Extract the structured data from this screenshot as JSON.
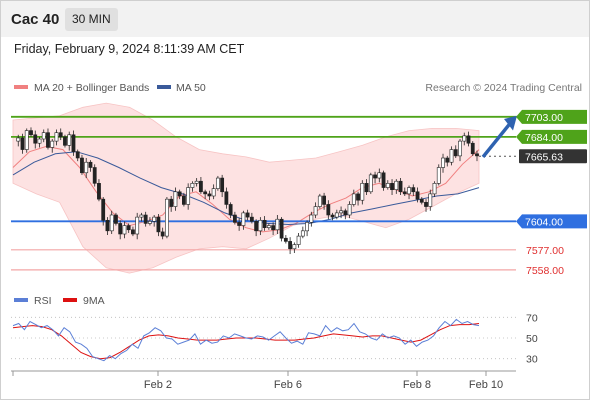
{
  "header": {
    "symbol": "Cac 40",
    "timeframe": "30 MIN",
    "datetime": "Friday, February 9, 2024 8:11:39 AM CET"
  },
  "legend": {
    "ma20": "MA 20 + Bollinger Bands",
    "ma50": "MA 50",
    "rsi": "RSI",
    "ma9": "9MA",
    "copyright": "Research © 2024 Trading Central",
    "colors": {
      "ma20": "#f08080",
      "ma50": "#3a5a9a",
      "rsi": "#5b7fd6",
      "ma9": "#dd1111"
    }
  },
  "chart_data": {
    "type": "candlestick",
    "price_ylim": [
      7538,
      7718
    ],
    "x_ticks": [
      "Feb 2",
      "Feb 6",
      "Feb 8",
      "Feb 10"
    ],
    "levels": [
      {
        "label": "7703.00",
        "value": 7703.0,
        "kind": "target",
        "color": "#4fa31a"
      },
      {
        "label": "7684.00",
        "value": 7684.0,
        "kind": "resistance",
        "color": "#4fa31a"
      },
      {
        "label": "7665.63",
        "value": 7665.63,
        "kind": "last",
        "color": "#333333"
      },
      {
        "label": "7604.00",
        "value": 7604.0,
        "kind": "pivot",
        "color": "#2f6fe0"
      },
      {
        "label": "7577.00",
        "value": 7577.0,
        "kind": "support",
        "color": "#e25a5a"
      },
      {
        "label": "7558.00",
        "value": 7558.0,
        "kind": "support",
        "color": "#e25a5a"
      }
    ],
    "close_path": [
      7680,
      7683,
      7672,
      7690,
      7686,
      7678,
      7682,
      7688,
      7674,
      7680,
      7688,
      7684,
      7676,
      7686,
      7670,
      7664,
      7650,
      7660,
      7655,
      7640,
      7625,
      7605,
      7595,
      7610,
      7602,
      7592,
      7600,
      7596,
      7592,
      7608,
      7610,
      7602,
      7604,
      7608,
      7594,
      7590,
      7625,
      7618,
      7632,
      7628,
      7620,
      7636,
      7640,
      7642,
      7632,
      7630,
      7628,
      7635,
      7645,
      7632,
      7620,
      7610,
      7603,
      7600,
      7612,
      7608,
      7604,
      7595,
      7605,
      7598,
      7600,
      7596,
      7606,
      7588,
      7585,
      7578,
      7582,
      7590,
      7595,
      7603,
      7610,
      7618,
      7628,
      7620,
      7610,
      7608,
      7612,
      7614,
      7610,
      7620,
      7630,
      7624,
      7640,
      7632,
      7648,
      7645,
      7650,
      7636,
      7640,
      7634,
      7642,
      7632,
      7630,
      7636,
      7632,
      7625,
      7622,
      7618,
      7630,
      7640,
      7655,
      7664,
      7660,
      7672,
      7666,
      7680,
      7685,
      7678,
      7668,
      7666
    ],
    "bollinger_upper": [
      7700,
      7702,
      7704,
      7712,
      7716,
      7712,
      7700,
      7684,
      7672,
      7668,
      7665,
      7660,
      7662,
      7664,
      7670,
      7676,
      7684,
      7690,
      7692,
      7692,
      7690
    ],
    "bollinger_lower": [
      7640,
      7630,
      7622,
      7580,
      7560,
      7555,
      7560,
      7570,
      7578,
      7580,
      7578,
      7588,
      7600,
      7606,
      7610,
      7604,
      7598,
      7606,
      7618,
      7630,
      7640
    ],
    "ma20": [
      7655,
      7670,
      7675,
      7672,
      7655,
      7632,
      7612,
      7600,
      7604,
      7610,
      7628,
      7632,
      7620,
      7606,
      7598,
      7594,
      7596,
      7602,
      7612,
      7620,
      7626,
      7636,
      7640,
      7634,
      7628,
      7632,
      7640,
      7658,
      7672
    ],
    "ma50": [
      7648,
      7660,
      7668,
      7670,
      7664,
      7655,
      7645,
      7636,
      7630,
      7622,
      7612,
      7605,
      7602,
      7601,
      7602,
      7606,
      7612,
      7616,
      7620,
      7624,
      7628,
      7630,
      7636
    ],
    "rsi": {
      "ylim": [
        20,
        80
      ],
      "ticks": [
        "70",
        "50",
        "30"
      ],
      "tick_values": [
        70,
        50,
        30
      ],
      "rsi_values": [
        62,
        64,
        58,
        66,
        63,
        60,
        62,
        58,
        52,
        60,
        56,
        46,
        44,
        40,
        32,
        30,
        28,
        33,
        30,
        35,
        38,
        44,
        40,
        52,
        55,
        60,
        57,
        50,
        49,
        44,
        46,
        48,
        54,
        44,
        48,
        45,
        46,
        52,
        50,
        54,
        52,
        50,
        49,
        52,
        51,
        48,
        52,
        56,
        50,
        45,
        47,
        44,
        55,
        54,
        52,
        62,
        56,
        60,
        57,
        58,
        64,
        56,
        54,
        50,
        48,
        54,
        50,
        52,
        50,
        44,
        48,
        42,
        46,
        48,
        52,
        60,
        66,
        62,
        68,
        64,
        66,
        63,
        62
      ],
      "ma9_values": [
        60,
        61,
        62,
        61,
        58,
        52,
        44,
        36,
        32,
        30,
        31,
        36,
        42,
        48,
        52,
        53,
        52,
        50,
        49,
        48,
        48,
        48,
        49,
        50,
        50,
        50,
        49,
        48,
        48,
        48,
        49,
        50,
        52,
        54,
        53,
        52,
        51,
        52,
        52,
        50,
        48,
        46,
        48,
        53,
        58,
        62,
        63,
        63,
        64
      ]
    }
  }
}
